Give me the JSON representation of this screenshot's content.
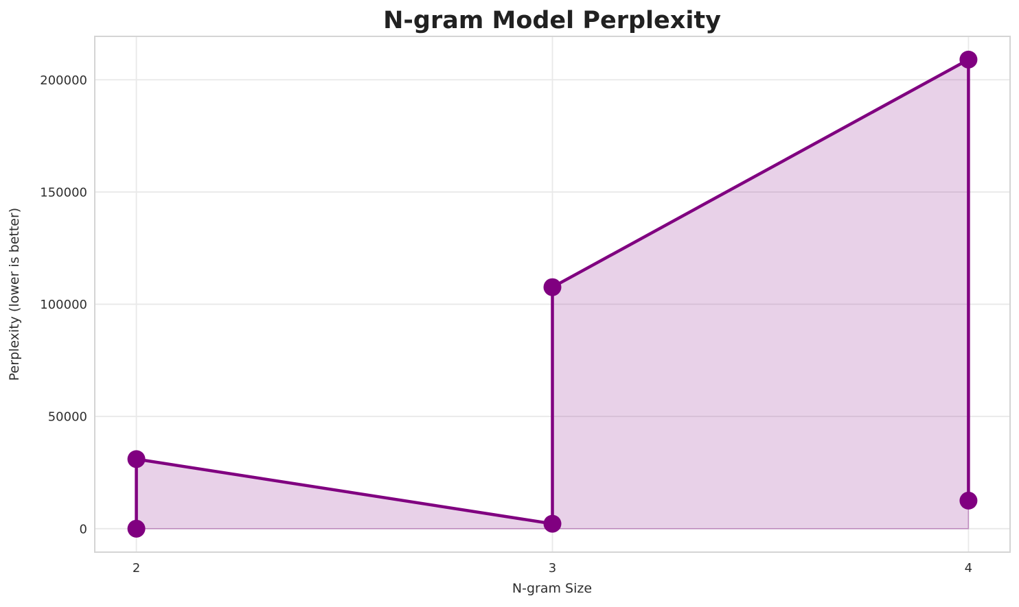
{
  "chart_data": {
    "type": "area",
    "title": "N-gram Model Perplexity",
    "xlabel": "N-gram Size",
    "ylabel": "Perplexity (lower is better)",
    "points": [
      {
        "x": 2,
        "y": 0
      },
      {
        "x": 2,
        "y": 31000
      },
      {
        "x": 3,
        "y": 2200
      },
      {
        "x": 3,
        "y": 107600
      },
      {
        "x": 4,
        "y": 209000
      },
      {
        "x": 4,
        "y": 12500
      }
    ],
    "fill_baseline": 0,
    "xticks": [
      2,
      3,
      4
    ],
    "yticks": [
      0,
      50000,
      100000,
      150000,
      200000
    ],
    "xtick_labels": [
      "2",
      "3",
      "4"
    ],
    "ytick_labels": [
      "0",
      "50000",
      "100000",
      "150000",
      "200000"
    ],
    "xlim": [
      1.9,
      4.1
    ],
    "ylim": [
      -10445,
      219345
    ],
    "grid": true,
    "legend_position": "none",
    "colors": {
      "line": "#800080",
      "marker": "#800080",
      "fill": "rgba(128,0,128,0.18)",
      "fill_edge": "rgba(128,0,128,0.35)",
      "grid": "#e9e9e9",
      "spine": "#d4d4d4",
      "tick_text": "#2e2e2e",
      "title_text": "#212121"
    },
    "line_width": 4.5,
    "marker_radius": 13
  }
}
